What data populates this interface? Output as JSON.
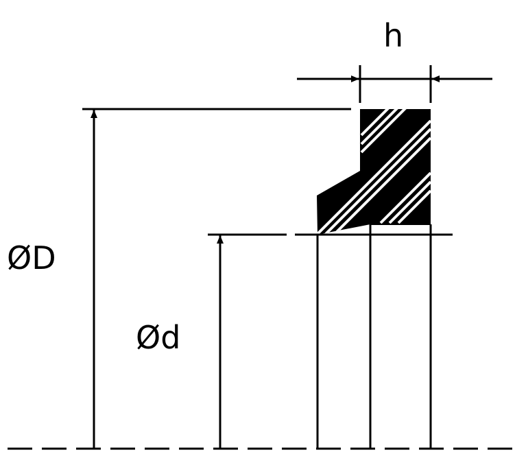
{
  "labels": {
    "height": "h",
    "outer_diameter": "ØD",
    "inner_diameter": "Ød"
  },
  "colors": {
    "line": "#000000",
    "background": "#ffffff"
  }
}
